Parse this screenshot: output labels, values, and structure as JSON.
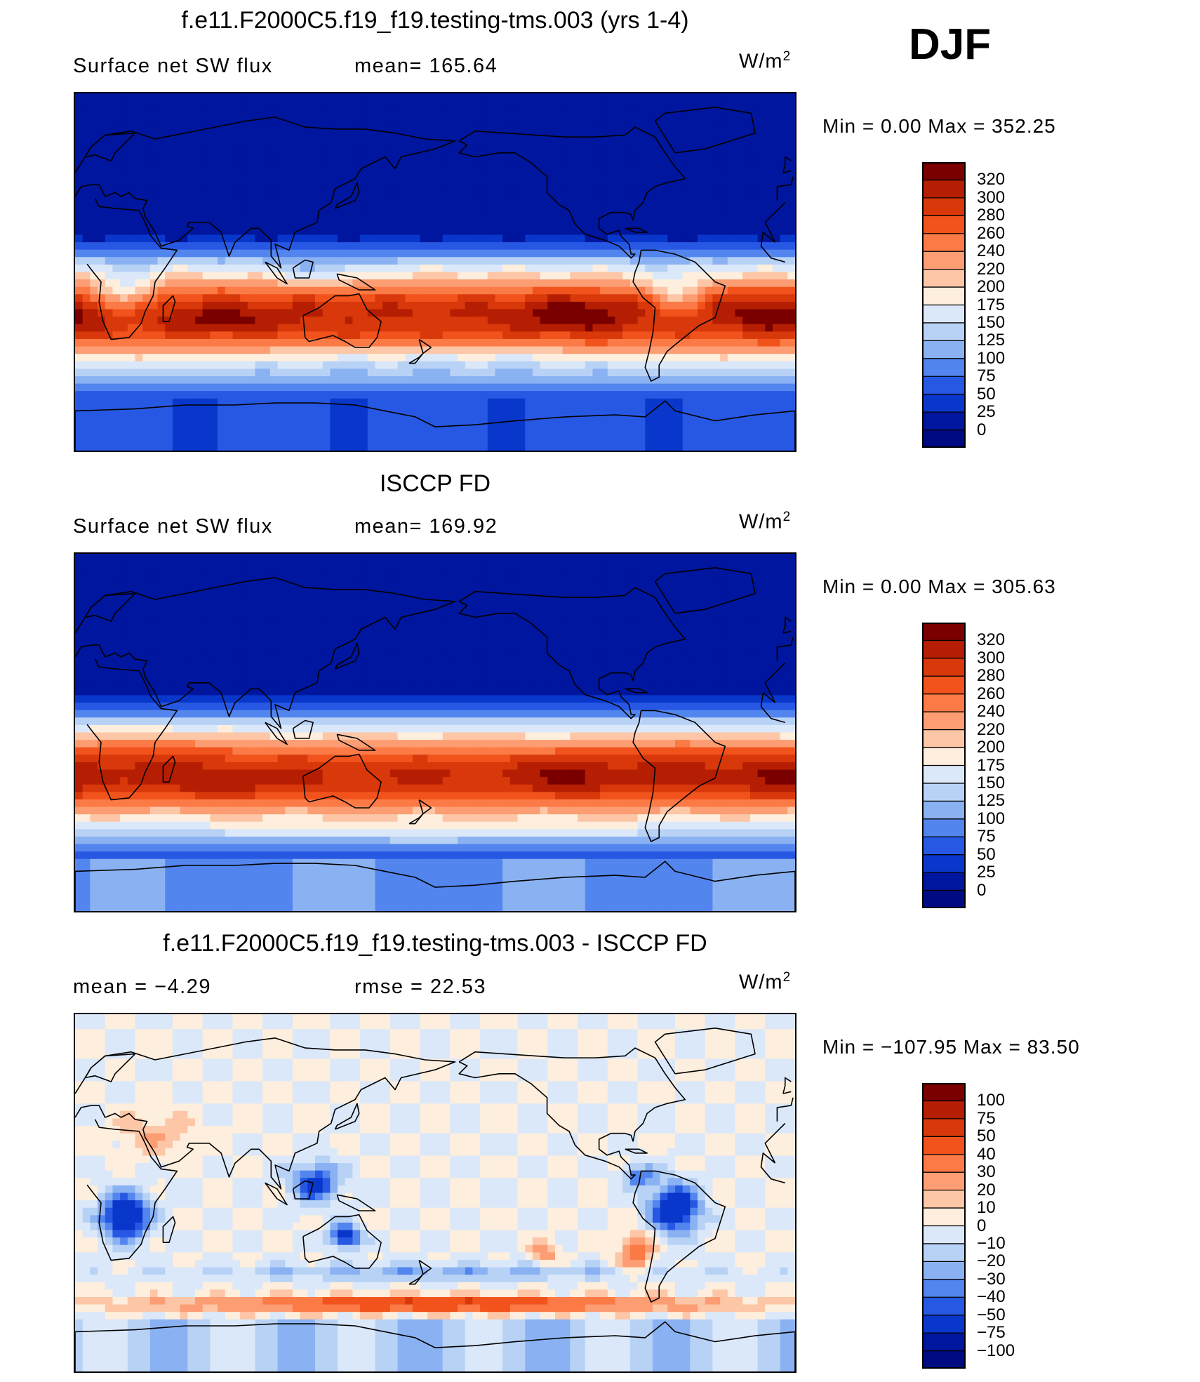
{
  "season": "DJF",
  "panels": [
    {
      "title": "f.e11.F2000C5.f19_f19.testing-tms.003 (yrs 1-4)",
      "left_label": "Surface net SW flux",
      "center_label": "mean= 165.64",
      "units": "W/m",
      "units_exp": "2",
      "min_max": "Min =    0.00 Max = 352.25",
      "colorbar": {
        "levels": [
          "320",
          "300",
          "280",
          "260",
          "240",
          "220",
          "200",
          "175",
          "150",
          "125",
          "100",
          "75",
          "50",
          "25",
          "0"
        ],
        "colors": [
          "#7a0000",
          "#b51e02",
          "#d8380a",
          "#f2531c",
          "#fb7a45",
          "#fc9d73",
          "#fdc6a6",
          "#fdeedd",
          "#dbe8f9",
          "#b8d2f6",
          "#8ab2f3",
          "#5385ee",
          "#2758e3",
          "#0937cb",
          "#00169e",
          "#000a82"
        ]
      },
      "field": "sw_model"
    },
    {
      "title": "ISCCP FD",
      "left_label": "Surface net SW flux",
      "center_label": "mean= 169.92",
      "units": "W/m",
      "units_exp": "2",
      "min_max": "Min =    0.00 Max = 305.63",
      "colorbar": {
        "levels": [
          "320",
          "300",
          "280",
          "260",
          "240",
          "220",
          "200",
          "175",
          "150",
          "125",
          "100",
          "75",
          "50",
          "25",
          "0"
        ],
        "colors": [
          "#7a0000",
          "#b51e02",
          "#d8380a",
          "#f2531c",
          "#fb7a45",
          "#fc9d73",
          "#fdc6a6",
          "#fdeedd",
          "#dbe8f9",
          "#b8d2f6",
          "#8ab2f3",
          "#5385ee",
          "#2758e3",
          "#0937cb",
          "#00169e",
          "#000a82"
        ]
      },
      "field": "sw_obs"
    },
    {
      "title": "f.e11.F2000C5.f19_f19.testing-tms.003 - ISCCP FD",
      "left_label": "mean =   −4.29",
      "center_label": "rmse =   22.53",
      "units": "W/m",
      "units_exp": "2",
      "min_max": "Min = −107.95 Max =   83.50",
      "colorbar": {
        "levels": [
          "100",
          "75",
          "50",
          "40",
          "30",
          "20",
          "10",
          "0",
          "−10",
          "−20",
          "−30",
          "−40",
          "−50",
          "−75",
          "−100"
        ],
        "colors": [
          "#7a0000",
          "#b51e02",
          "#d8380a",
          "#f2531c",
          "#fb7a45",
          "#fc9d73",
          "#fdc6a6",
          "#fdeedd",
          "#dbe8f9",
          "#b8d2f6",
          "#8ab2f3",
          "#5385ee",
          "#2758e3",
          "#0937cb",
          "#00169e",
          "#000a82"
        ]
      },
      "field": "sw_diff"
    }
  ]
}
